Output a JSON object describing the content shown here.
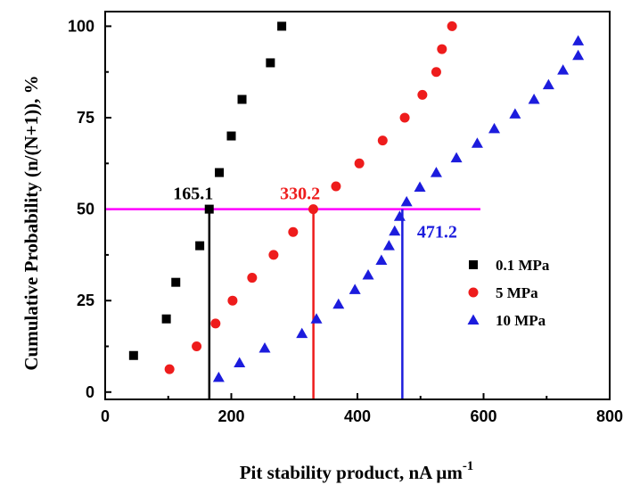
{
  "chart_data": {
    "type": "scatter",
    "xlabel": "Pit stability product, nA μm",
    "xlabel_sup": "-1",
    "ylabel": "Cumulative Probability (n/(N+1)), %",
    "xlim": [
      0,
      800
    ],
    "ylim": [
      -2,
      104
    ],
    "x_ticks": [
      0,
      200,
      400,
      600,
      800
    ],
    "y_ticks": [
      0,
      25,
      50,
      75,
      100
    ],
    "grid": false,
    "legend_position": "right",
    "series": [
      {
        "name": "0.1 MPa",
        "marker": "square",
        "color": "#000000",
        "points": [
          [
            45,
            10
          ],
          [
            97,
            20
          ],
          [
            112,
            30
          ],
          [
            150,
            40
          ],
          [
            165,
            50
          ],
          [
            181,
            60
          ],
          [
            200,
            70
          ],
          [
            217,
            80
          ],
          [
            262,
            90
          ],
          [
            280,
            100
          ]
        ]
      },
      {
        "name": "5 MPa",
        "marker": "circle",
        "color": "#ee1c1c",
        "points": [
          [
            102,
            6.25
          ],
          [
            145,
            12.5
          ],
          [
            175,
            18.75
          ],
          [
            202,
            25
          ],
          [
            233,
            31.25
          ],
          [
            267,
            37.5
          ],
          [
            298,
            43.75
          ],
          [
            330,
            50
          ],
          [
            366,
            56.25
          ],
          [
            403,
            62.5
          ],
          [
            440,
            68.75
          ],
          [
            475,
            75
          ],
          [
            503,
            81.25
          ],
          [
            525,
            87.5
          ],
          [
            534,
            93.75
          ],
          [
            550,
            100
          ]
        ]
      },
      {
        "name": "10 MPa",
        "marker": "triangle",
        "color": "#1c1cdd",
        "points": [
          [
            180,
            4
          ],
          [
            213,
            8
          ],
          [
            253,
            12
          ],
          [
            312,
            16
          ],
          [
            335,
            20
          ],
          [
            370,
            24
          ],
          [
            396,
            28
          ],
          [
            417,
            32
          ],
          [
            438,
            36
          ],
          [
            450,
            40
          ],
          [
            459,
            44
          ],
          [
            467,
            48
          ],
          [
            478,
            52
          ],
          [
            499,
            56
          ],
          [
            525,
            60
          ],
          [
            557,
            64
          ],
          [
            590,
            68
          ],
          [
            617,
            72
          ],
          [
            650,
            76
          ],
          [
            680,
            80
          ],
          [
            703,
            84
          ],
          [
            726,
            88
          ],
          [
            750,
            92
          ],
          [
            750,
            96
          ]
        ]
      }
    ],
    "reference_line": {
      "y": 50,
      "x_from": 0,
      "x_to": 595,
      "color": "#ff00ff"
    },
    "annotations": [
      {
        "text": "165.1",
        "x": 165.1,
        "y": 50,
        "color": "#000000"
      },
      {
        "text": "330.2",
        "x": 330.2,
        "y": 50,
        "color": "#ee1c1c"
      },
      {
        "text": "471.2",
        "x": 471.2,
        "y": 50,
        "color": "#1c1cdd"
      }
    ]
  }
}
